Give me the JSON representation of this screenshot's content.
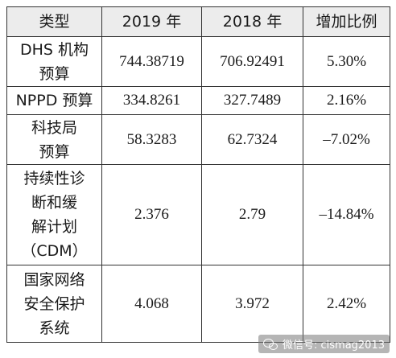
{
  "table": {
    "headers": [
      "类型",
      "2019 年",
      "2018 年",
      "增加比例"
    ],
    "rows": [
      {
        "type_lines": [
          "DHS 机构",
          "预算"
        ],
        "y2019": "744.38719",
        "y2018": "706.92491",
        "change": "5.30%"
      },
      {
        "type_lines": [
          "NPPD 预算"
        ],
        "y2019": "334.8261",
        "y2018": "327.7489",
        "change": "2.16%"
      },
      {
        "type_lines": [
          "科技局",
          "预算"
        ],
        "y2019": "58.3283",
        "y2018": "62.7324",
        "change": "–7.02%"
      },
      {
        "type_lines": [
          "持续性诊",
          "断和缓",
          "解计划",
          "（CDM）"
        ],
        "y2019": "2.376",
        "y2018": "2.79",
        "change": "–14.84%"
      },
      {
        "type_lines": [
          "国家网络",
          "安全保护",
          "系统"
        ],
        "y2019": "4.068",
        "y2018": "3.972",
        "change": "2.42%"
      }
    ]
  },
  "watermark": {
    "text": "微信号: cismag2013",
    "icon": "wechat-icon"
  }
}
